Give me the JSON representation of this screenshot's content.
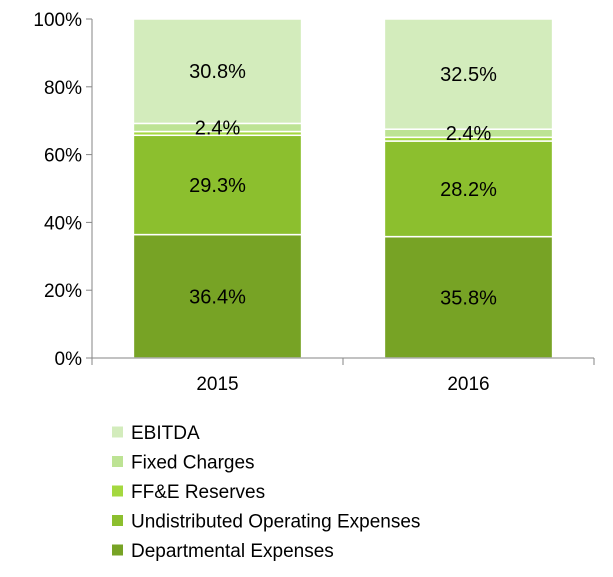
{
  "chart_data": {
    "type": "bar",
    "stacked": true,
    "percent_stacked": true,
    "categories": [
      "2015",
      "2016"
    ],
    "series": [
      {
        "name": "Departmental Expenses",
        "values": [
          36.4,
          35.8
        ],
        "labels": [
          "36.4%",
          "35.8%"
        ],
        "color": "#77a325"
      },
      {
        "name": "Undistributed Operating Expenses",
        "values": [
          29.3,
          28.2
        ],
        "labels": [
          "29.3%",
          "28.2%"
        ],
        "color": "#8cbf2e"
      },
      {
        "name": "FF&E Reserves",
        "values": [
          1.1,
          1.1
        ],
        "labels": [
          "",
          ""
        ],
        "color": "#a4d83f"
      },
      {
        "name": "Fixed Charges",
        "values": [
          2.4,
          2.4
        ],
        "labels": [
          "2.4%",
          "2.4%"
        ],
        "color": "#bde394"
      },
      {
        "name": "EBITDA",
        "values": [
          30.8,
          32.5
        ],
        "labels": [
          "30.8%",
          "32.5%"
        ],
        "color": "#d3ecbc"
      }
    ],
    "ylim": [
      0,
      100
    ],
    "yticks": [
      0,
      20,
      40,
      60,
      80,
      100
    ],
    "ytick_labels": [
      "0%",
      "20%",
      "40%",
      "60%",
      "80%",
      "100%"
    ],
    "legend_order": [
      "EBITDA",
      "Fixed Charges",
      "FF&E Reserves",
      "Undistributed Operating Expenses",
      "Departmental Expenses"
    ],
    "legend_position": "bottom",
    "grid": false,
    "title": "",
    "xlabel": "",
    "ylabel": ""
  }
}
